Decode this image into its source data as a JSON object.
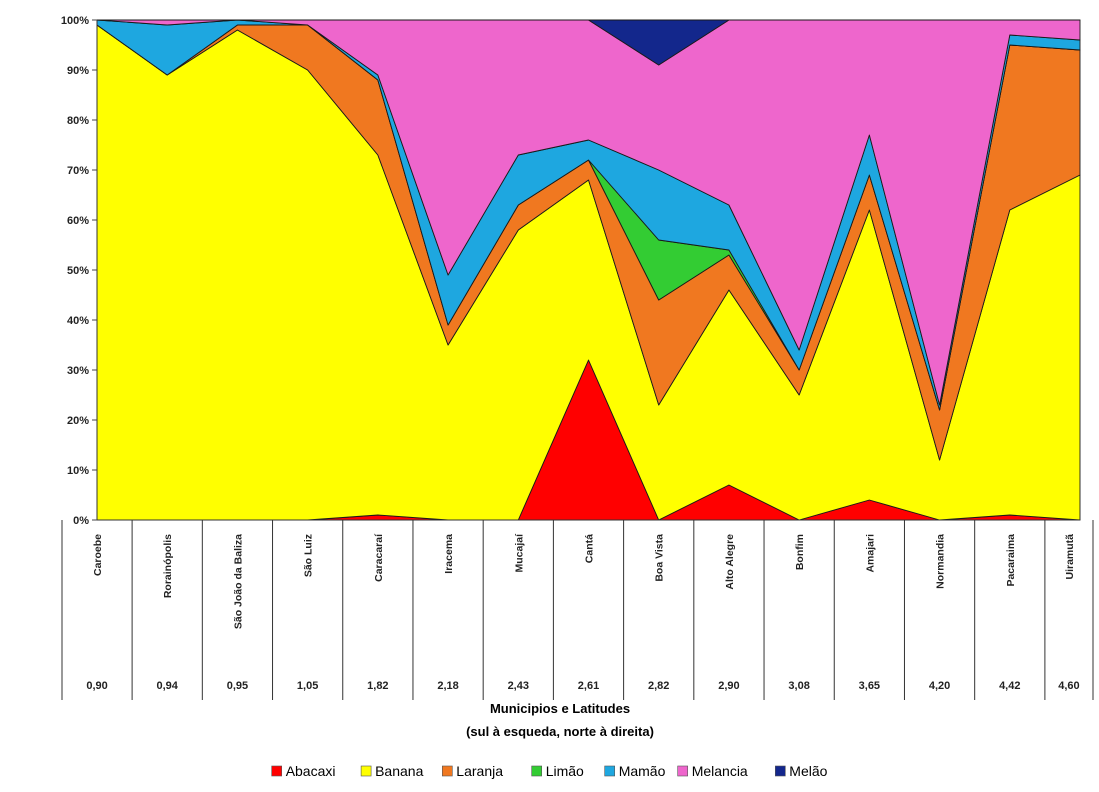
{
  "chart_data": {
    "type": "area",
    "stacking": "percent",
    "categories": [
      "Caroebe",
      "Rorainópolis",
      "São João da Baliza",
      "São Luiz",
      "Caracaraí",
      "Iracema",
      "Mucajaí",
      "Cantá",
      "Boa Vista",
      "Alto Alegre",
      "Bonfim",
      "Amajari",
      "Normandia",
      "Pacaraima",
      "Uiramutã"
    ],
    "latitudes": [
      "0,90",
      "0,94",
      "0,95",
      "1,05",
      "1,82",
      "2,18",
      "2,43",
      "2,61",
      "2,82",
      "2,90",
      "3,08",
      "3,65",
      "4,20",
      "4,42",
      "4,60"
    ],
    "xlabel": "Municipios e Latitudes",
    "xlabel2": "(sul à esqueda, norte à direita)",
    "ylabel": "",
    "ylim": [
      0,
      100
    ],
    "ytick_labels": [
      "0%",
      "10%",
      "20%",
      "30%",
      "40%",
      "50%",
      "60%",
      "70%",
      "80%",
      "90%",
      "100%"
    ],
    "legend_position": "bottom",
    "series": [
      {
        "name": "Abacaxi",
        "color": "#ff0000",
        "values": [
          0,
          0,
          0,
          0,
          1,
          0,
          0,
          32,
          0,
          7,
          0,
          4,
          0,
          1,
          0
        ]
      },
      {
        "name": "Banana",
        "color": "#ffff00",
        "values": [
          99,
          89,
          98,
          90,
          72,
          35,
          58,
          36,
          23,
          39,
          25,
          58,
          12,
          61,
          69
        ]
      },
      {
        "name": "Laranja",
        "color": "#f07820",
        "values": [
          0,
          0,
          1,
          9,
          15,
          4,
          5,
          4,
          21,
          7,
          5,
          7,
          10,
          33,
          25
        ]
      },
      {
        "name": "Limão",
        "color": "#33cc33",
        "values": [
          0,
          0,
          0,
          0,
          0,
          0,
          0,
          0,
          12,
          1,
          0,
          0,
          0,
          0,
          0
        ]
      },
      {
        "name": "Mamão",
        "color": "#1ea7e0",
        "values": [
          1,
          10,
          1,
          0,
          1,
          10,
          10,
          4,
          14,
          9,
          4,
          8,
          1,
          2,
          2
        ]
      },
      {
        "name": "Melancia",
        "color": "#ee66cc",
        "values": [
          0,
          1,
          0,
          1,
          11,
          51,
          27,
          24,
          21,
          37,
          66,
          23,
          77,
          3,
          4
        ]
      },
      {
        "name": "Melão",
        "color": "#13278c",
        "values": [
          0,
          0,
          0,
          0,
          0,
          0,
          0,
          0,
          9,
          0,
          0,
          0,
          0,
          0,
          0
        ]
      }
    ]
  }
}
